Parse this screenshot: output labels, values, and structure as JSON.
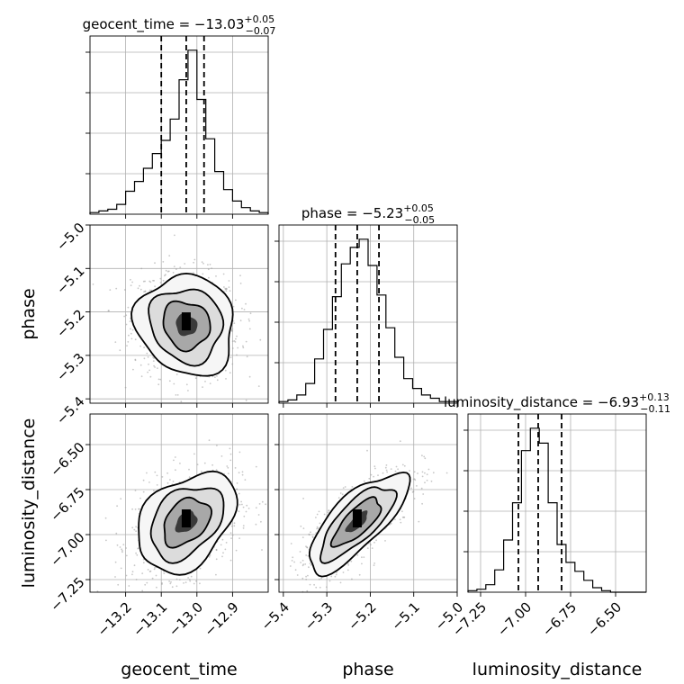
{
  "chart_data": {
    "type": "corner",
    "parameters": [
      "geocent_time",
      "phase",
      "luminosity_distance"
    ],
    "titles": [
      {
        "param": "geocent_time",
        "label": "geocent_time = ",
        "median": "−13.03",
        "plus": "+0.05",
        "minus": "−0.07"
      },
      {
        "param": "phase",
        "label": "phase = ",
        "median": "−5.23",
        "plus": "+0.05",
        "minus": "−0.05"
      },
      {
        "param": "luminosity_distance",
        "label": "luminosity_distance = ",
        "median": "−6.93",
        "plus": "+0.13",
        "minus": "−0.11"
      }
    ],
    "ranges": {
      "geocent_time": [
        -13.3,
        -12.8
      ],
      "phase": [
        -5.41,
        -5.0
      ],
      "luminosity_distance": [
        -7.32,
        -6.33
      ]
    },
    "ticks": {
      "geocent_time": [
        {
          "v": -13.2,
          "t": "−13.2"
        },
        {
          "v": -13.1,
          "t": "−13.1"
        },
        {
          "v": -13.0,
          "t": "−13.0"
        },
        {
          "v": -12.9,
          "t": "−12.9"
        }
      ],
      "phase": [
        {
          "v": -5.4,
          "t": "−5.4"
        },
        {
          "v": -5.3,
          "t": "−5.3"
        },
        {
          "v": -5.2,
          "t": "−5.2"
        },
        {
          "v": -5.1,
          "t": "−5.1"
        },
        {
          "v": -5.0,
          "t": "−5.0"
        }
      ],
      "luminosity_distance": [
        {
          "v": -7.25,
          "t": "−7.25"
        },
        {
          "v": -7.0,
          "t": "−7.00"
        },
        {
          "v": -6.75,
          "t": "−6.75"
        },
        {
          "v": -6.5,
          "t": "−6.50"
        }
      ]
    },
    "quantiles": {
      "geocent_time": [
        -13.1,
        -13.03,
        -12.98
      ],
      "phase": [
        -5.28,
        -5.23,
        -5.18
      ],
      "luminosity_distance": [
        -7.04,
        -6.93,
        -6.8
      ]
    },
    "histograms": {
      "geocent_time": [
        1,
        2,
        3,
        6,
        14,
        20,
        28,
        37,
        45,
        58,
        82,
        100,
        70,
        46,
        26,
        15,
        8,
        4,
        2,
        1
      ],
      "phase": [
        1,
        2,
        5,
        12,
        27,
        45,
        65,
        85,
        95,
        100,
        84,
        66,
        46,
        28,
        15,
        9,
        5,
        3,
        1,
        1
      ],
      "luminosity_distance": [
        1,
        2,
        5,
        15,
        35,
        60,
        95,
        110,
        100,
        60,
        32,
        20,
        14,
        8,
        3,
        1,
        0,
        0,
        0,
        0
      ]
    },
    "correlations": {
      "phase|geocent_time": -0.1,
      "luminosity_distance|geocent_time": 0.35,
      "luminosity_distance|phase": 0.75
    },
    "grid": true,
    "legend": "none"
  }
}
